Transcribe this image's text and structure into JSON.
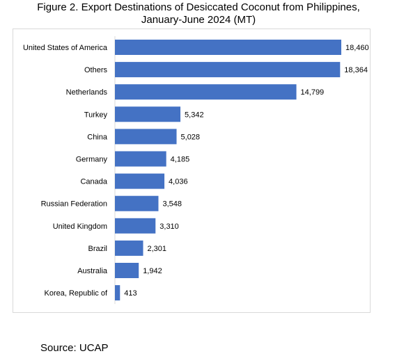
{
  "chart_data": {
    "type": "bar",
    "orientation": "horizontal",
    "title_line1": "Figure 2. Export Destinations of Desiccated Coconut from Philippines,",
    "title_line2": "January-June 2024 (MT)",
    "categories": [
      "United States of America",
      "Others",
      "Netherlands",
      "Turkey",
      "China",
      "Germany",
      "Canada",
      "Russian Federation",
      "United Kingdom",
      "Brazil",
      "Australia",
      "Korea, Republic of"
    ],
    "values": [
      18460,
      18364,
      14799,
      5342,
      5028,
      4185,
      4036,
      3548,
      3310,
      2301,
      1942,
      413
    ],
    "value_labels": [
      "18,460",
      "18,364",
      "14,799",
      "5,342",
      "5,028",
      "4,185",
      "4,036",
      "3,548",
      "3,310",
      "2,301",
      "1,942",
      "413"
    ],
    "xlim": [
      0,
      18460
    ],
    "bar_color": "#4472c4",
    "grid": false,
    "legend": "none"
  },
  "source": "Source: UCAP"
}
